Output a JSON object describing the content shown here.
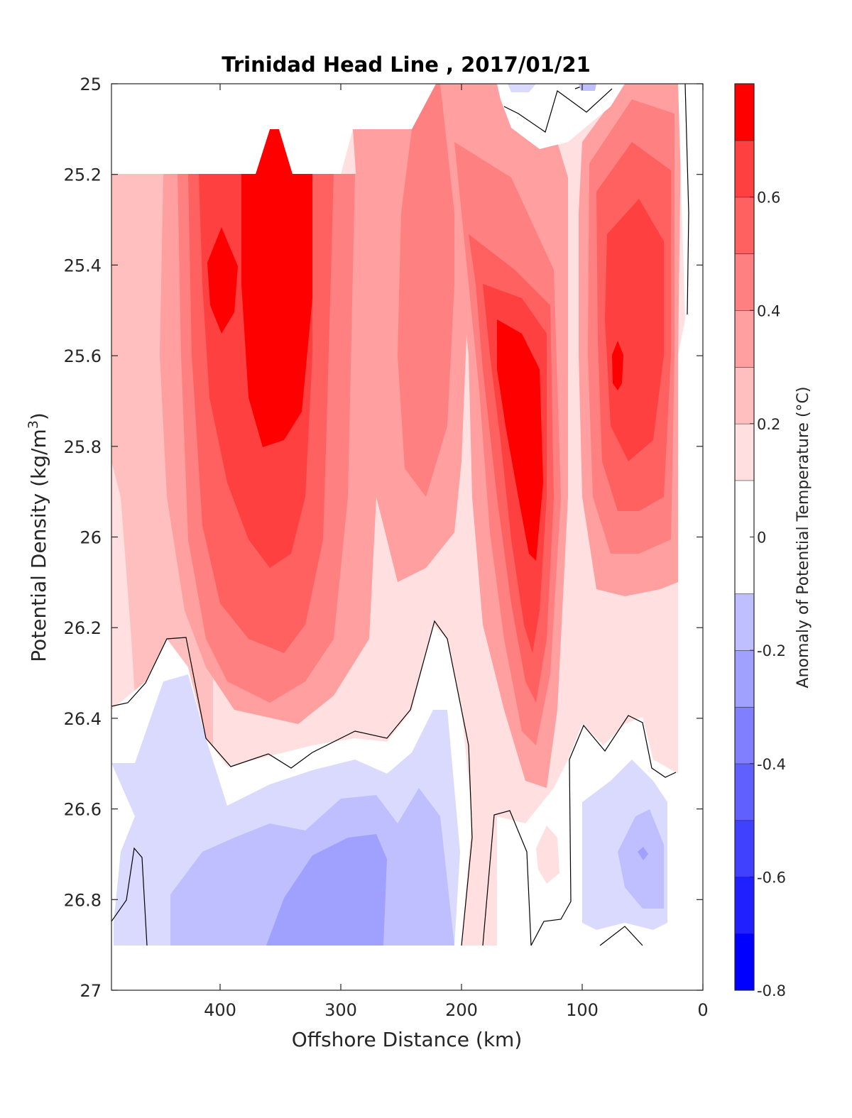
{
  "chart_data": {
    "type": "heatmap",
    "subtype": "filled-contour",
    "title": "Trinidad Head Line , 2017/01/21",
    "xlabel": "Offshore Distance (km)",
    "ylabel_base": "Potential Density (kg/m",
    "ylabel_sup": "3",
    "ylabel_end": ")",
    "colorbar_label": "Anomaly of Potential Temperature (°C)",
    "xlim": [
      490,
      0
    ],
    "x_reversed": true,
    "ylim": [
      25,
      27
    ],
    "y_reversed": true,
    "grid": false,
    "x_ticks": [
      {
        "value": 400,
        "label": "400"
      },
      {
        "value": 300,
        "label": "300"
      },
      {
        "value": 200,
        "label": "200"
      },
      {
        "value": 100,
        "label": "100"
      },
      {
        "value": 0,
        "label": "0"
      }
    ],
    "y_ticks": [
      {
        "value": 25,
        "label": "25"
      },
      {
        "value": 25.2,
        "label": "25.2"
      },
      {
        "value": 25.4,
        "label": "25.4"
      },
      {
        "value": 25.6,
        "label": "25.6"
      },
      {
        "value": 25.8,
        "label": "25.8"
      },
      {
        "value": 26,
        "label": "26"
      },
      {
        "value": 26.2,
        "label": "26.2"
      },
      {
        "value": 26.4,
        "label": "26.4"
      },
      {
        "value": 26.6,
        "label": "26.6"
      },
      {
        "value": 26.8,
        "label": "26.8"
      },
      {
        "value": 27,
        "label": "27"
      }
    ],
    "colorbar": {
      "range": [
        -0.8,
        0.8
      ],
      "levels": [
        {
          "from": -0.8,
          "to": -0.7,
          "color": "#0000ff"
        },
        {
          "from": -0.7,
          "to": -0.6,
          "color": "#2020ff"
        },
        {
          "from": -0.6,
          "to": -0.5,
          "color": "#4040ff"
        },
        {
          "from": -0.5,
          "to": -0.4,
          "color": "#6060ff"
        },
        {
          "from": -0.4,
          "to": -0.3,
          "color": "#8080ff"
        },
        {
          "from": -0.3,
          "to": -0.2,
          "color": "#a0a0ff"
        },
        {
          "from": -0.2,
          "to": -0.1,
          "color": "#bfbfff"
        },
        {
          "from": -0.1,
          "to": 0.1,
          "color": "#ffffff"
        },
        {
          "from": 0.1,
          "to": 0.2,
          "color": "#ffdfdf"
        },
        {
          "from": 0.2,
          "to": 0.3,
          "color": "#ffbfbf"
        },
        {
          "from": 0.3,
          "to": 0.4,
          "color": "#ff9f9f"
        },
        {
          "from": 0.4,
          "to": 0.5,
          "color": "#ff8080"
        },
        {
          "from": 0.5,
          "to": 0.6,
          "color": "#ff6060"
        },
        {
          "from": 0.6,
          "to": 0.7,
          "color": "#ff4040"
        },
        {
          "from": 0.7,
          "to": 0.8,
          "color": "#ff0000"
        }
      ],
      "ticks": [
        {
          "value": 0.6,
          "label": "0.6"
        },
        {
          "value": 0.4,
          "label": "0.4"
        },
        {
          "value": 0.2,
          "label": "0.2"
        },
        {
          "value": 0,
          "label": "0"
        },
        {
          "value": -0.2,
          "label": "-0.2"
        },
        {
          "value": -0.4,
          "label": "-0.4"
        },
        {
          "value": -0.6,
          "label": "-0.6"
        },
        {
          "value": -0.8,
          "label": "-0.8"
        }
      ]
    },
    "sections": [
      {
        "distance_km": [
          490,
          440
        ],
        "anomaly_peak": 0.2
      },
      {
        "distance_km": [
          420,
          300
        ],
        "anomaly_peak": 0.8
      },
      {
        "distance_km": [
          290,
          200
        ],
        "anomaly_peak": 0.5
      },
      {
        "distance_km": [
          180,
          110
        ],
        "anomaly_peak": 0.8
      },
      {
        "distance_km": [
          95,
          20
        ],
        "anomaly_peak": 0.8
      },
      {
        "distance_km": [
          440,
          200
        ],
        "density": [
          26.45,
          26.9
        ],
        "anomaly_min": -0.4
      },
      {
        "distance_km": [
          100,
          20
        ],
        "density": [
          26.55,
          26.9
        ],
        "anomaly_min": -0.4
      }
    ]
  }
}
